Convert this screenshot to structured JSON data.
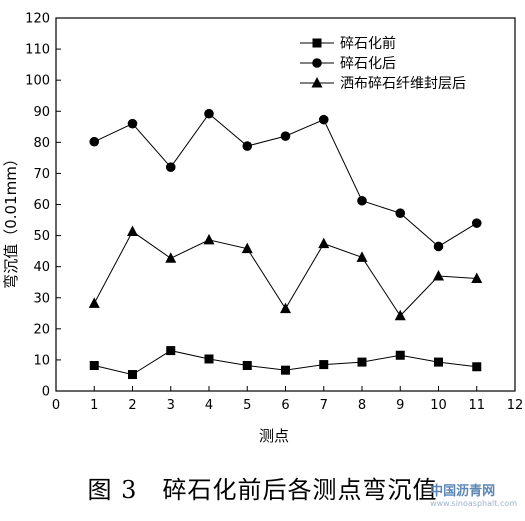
{
  "chart_data": {
    "type": "line",
    "xlabel": "测点",
    "ylabel": "弯沉值（0.01mm）",
    "xlim": [
      0,
      12
    ],
    "ylim": [
      0,
      120
    ],
    "xticks": [
      0,
      1,
      2,
      3,
      4,
      5,
      6,
      7,
      8,
      9,
      10,
      11,
      12
    ],
    "yticks": [
      0,
      10,
      20,
      30,
      40,
      50,
      60,
      70,
      80,
      90,
      100,
      110,
      120
    ],
    "grid": false,
    "legend_position": "top-right",
    "x": [
      1,
      2,
      3,
      4,
      5,
      6,
      7,
      8,
      9,
      10,
      11
    ],
    "series": [
      {
        "name": "碎石化前",
        "marker": "square",
        "values": [
          8.2,
          5.3,
          13.0,
          10.3,
          8.2,
          6.7,
          8.5,
          9.3,
          11.5,
          9.3,
          7.8
        ]
      },
      {
        "name": "碎石化后",
        "marker": "circle",
        "values": [
          80.2,
          86.0,
          72.0,
          89.2,
          78.8,
          82.0,
          87.3,
          61.2,
          57.2,
          46.5,
          54.0
        ]
      },
      {
        "name": "洒布碎石纤维封层后",
        "marker": "triangle",
        "values": [
          28.2,
          51.3,
          42.7,
          48.6,
          45.8,
          26.5,
          47.4,
          43.0,
          24.2,
          37.0,
          36.2
        ]
      }
    ]
  },
  "caption": "图 3　碎石化前后各测点弯沉值",
  "watermark": {
    "main": "中国沥青网",
    "url": "www.sinoasphalt.com"
  }
}
